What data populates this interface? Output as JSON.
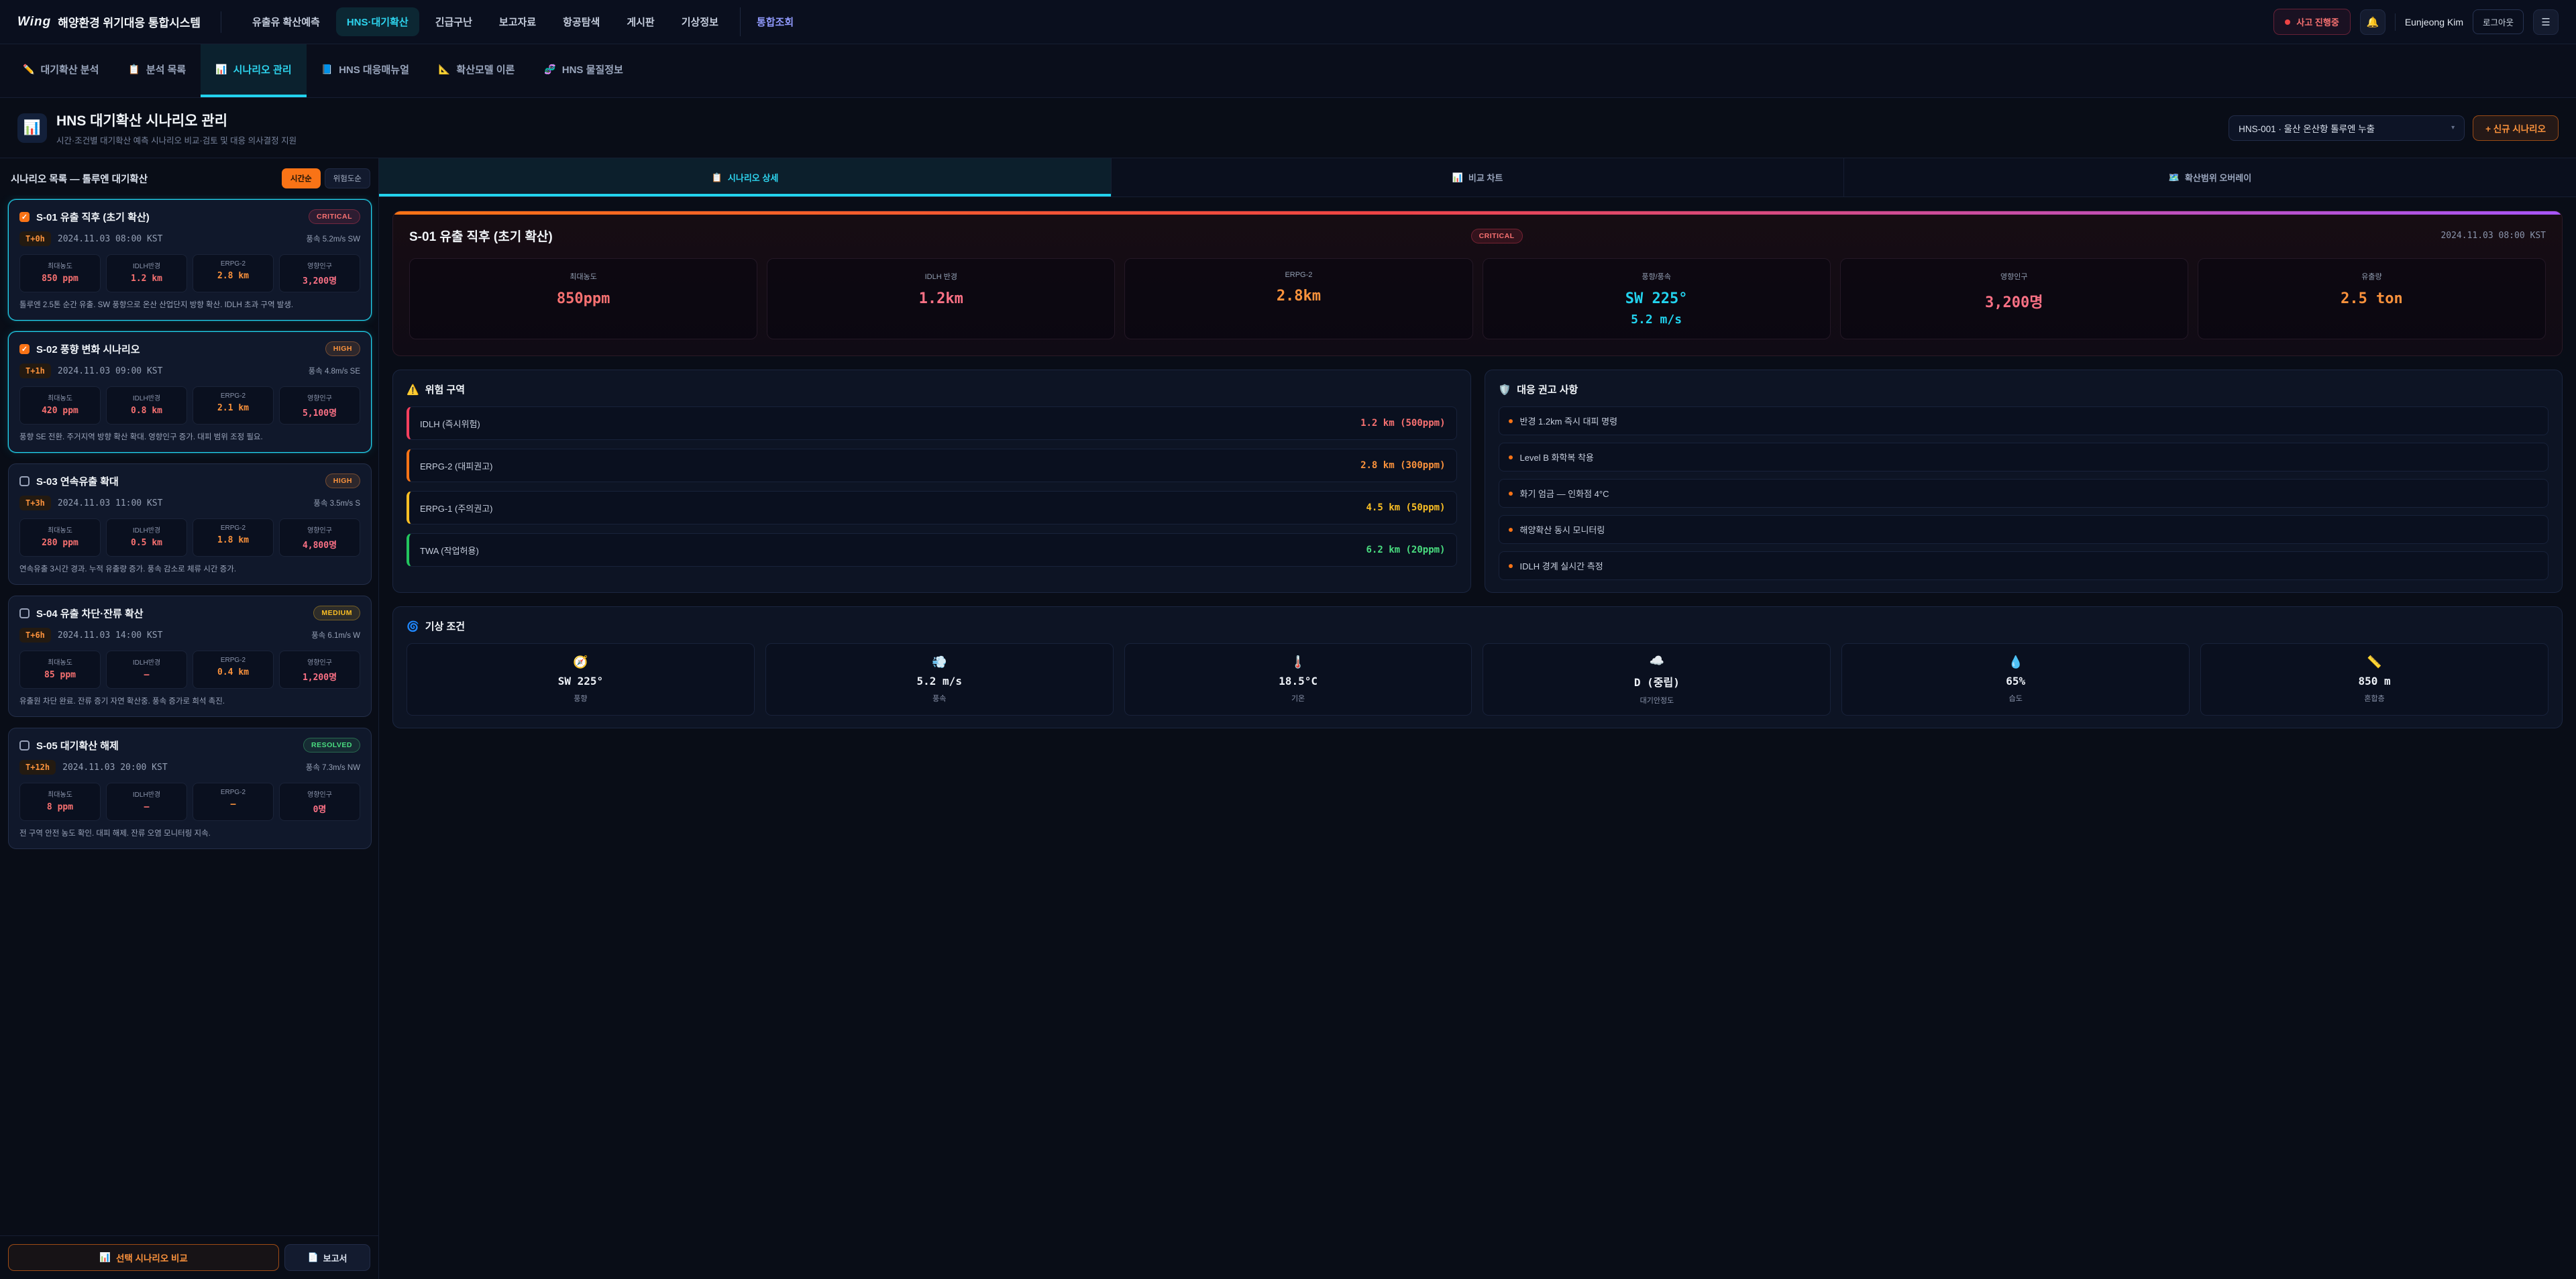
{
  "topnav": {
    "logo_mark": "Wing",
    "logo_text": "해양환경 위기대응 통합시스템",
    "items": [
      {
        "label": "유출유 확산예측",
        "state": "normal"
      },
      {
        "label": "HNS·대기확산",
        "state": "active"
      },
      {
        "label": "긴급구난",
        "state": "normal"
      },
      {
        "label": "보고자료",
        "state": "normal"
      },
      {
        "label": "항공탐색",
        "state": "normal"
      },
      {
        "label": "게시판",
        "state": "normal"
      },
      {
        "label": "기상정보",
        "state": "normal"
      },
      {
        "label": "통합조회",
        "state": "accent"
      }
    ],
    "incident_badge": "사고 진행중",
    "bell_icon": "🔔",
    "user_name": "Eunjeong Kim",
    "logout_label": "로그아웃",
    "menu_icon": "☰"
  },
  "subtabs": [
    {
      "icon": "✏️",
      "label": "대기확산 분석",
      "state": "normal"
    },
    {
      "icon": "📋",
      "label": "분석 목록",
      "state": "normal"
    },
    {
      "icon": "📊",
      "label": "시나리오 관리",
      "state": "active"
    },
    {
      "icon": "📘",
      "label": "HNS 대응매뉴얼",
      "state": "normal"
    },
    {
      "icon": "📐",
      "label": "확산모델 이론",
      "state": "normal"
    },
    {
      "icon": "🧬",
      "label": "HNS 물질정보",
      "state": "normal"
    }
  ],
  "header": {
    "icon": "📊",
    "title": "HNS 대기확산 시나리오 관리",
    "subtitle": "시간·조건별 대기확산 예측 시나리오 비교·검토 및 대응 의사결정 지원",
    "select_value": "HNS-001 · 울산 온산항 톨루엔 누출",
    "select_caret": "▾",
    "new_button": "+ 신규 시나리오"
  },
  "sidebar": {
    "title": "시나리오 목록 — 톨루엔 대기확산",
    "sort_time": "시간순",
    "sort_risk": "위험도순",
    "cards": [
      {
        "checked": "checked",
        "state": "selected",
        "title": "S-01 유출 직후 (초기 확산)",
        "severity": "CRITICAL",
        "sev_class": "critical",
        "time": "T+0h",
        "datetime": "2024.11.03 08:00 KST",
        "wind": "풍속 5.2m/s SW",
        "stats": [
          {
            "label": "최대농도",
            "value": "850 ppm",
            "color": "red"
          },
          {
            "label": "IDLH반경",
            "value": "1.2 km",
            "color": "red"
          },
          {
            "label": "ERPG-2",
            "value": "2.8 km",
            "color": "orange"
          },
          {
            "label": "영향인구",
            "value": "3,200명",
            "color": "pink"
          }
        ],
        "desc": "톨루엔 2.5톤 순간 유출. SW 풍향으로 온산 산업단지 방향 확산. IDLH 초과 구역 발생."
      },
      {
        "checked": "checked",
        "state": "selected",
        "title": "S-02 풍향 변화 시나리오",
        "severity": "HIGH",
        "sev_class": "high",
        "time": "T+1h",
        "datetime": "2024.11.03 09:00 KST",
        "wind": "풍속 4.8m/s SE",
        "stats": [
          {
            "label": "최대농도",
            "value": "420 ppm",
            "color": "red"
          },
          {
            "label": "IDLH반경",
            "value": "0.8 km",
            "color": "red"
          },
          {
            "label": "ERPG-2",
            "value": "2.1 km",
            "color": "orange"
          },
          {
            "label": "영향인구",
            "value": "5,100명",
            "color": "pink"
          }
        ],
        "desc": "풍향 SE 전환. 주거지역 방향 확산 확대. 영향인구 증가. 대피 범위 조정 필요."
      },
      {
        "checked": "unchecked",
        "state": "normal",
        "title": "S-03 연속유출 확대",
        "severity": "HIGH",
        "sev_class": "high",
        "time": "T+3h",
        "datetime": "2024.11.03 11:00 KST",
        "wind": "풍속 3.5m/s S",
        "stats": [
          {
            "label": "최대농도",
            "value": "280 ppm",
            "color": "red"
          },
          {
            "label": "IDLH반경",
            "value": "0.5 km",
            "color": "red"
          },
          {
            "label": "ERPG-2",
            "value": "1.8 km",
            "color": "orange"
          },
          {
            "label": "영향인구",
            "value": "4,800명",
            "color": "pink"
          }
        ],
        "desc": "연속유출 3시간 경과. 누적 유출량 증가. 풍속 감소로 체류 시간 증가."
      },
      {
        "checked": "unchecked",
        "state": "normal",
        "title": "S-04 유출 차단·잔류 확산",
        "severity": "MEDIUM",
        "sev_class": "medium",
        "time": "T+6h",
        "datetime": "2024.11.03 14:00 KST",
        "wind": "풍속 6.1m/s W",
        "stats": [
          {
            "label": "최대농도",
            "value": "85 ppm",
            "color": "red"
          },
          {
            "label": "IDLH반경",
            "value": "—",
            "color": "red"
          },
          {
            "label": "ERPG-2",
            "value": "0.4 km",
            "color": "orange"
          },
          {
            "label": "영향인구",
            "value": "1,200명",
            "color": "pink"
          }
        ],
        "desc": "유출원 차단 완료. 잔류 증기 자연 확산중. 풍속 증가로 희석 촉진."
      },
      {
        "checked": "unchecked",
        "state": "normal",
        "title": "S-05 대기확산 해제",
        "severity": "RESOLVED",
        "sev_class": "resolved",
        "time": "T+12h",
        "datetime": "2024.11.03 20:00 KST",
        "wind": "풍속 7.3m/s NW",
        "stats": [
          {
            "label": "최대농도",
            "value": "8 ppm",
            "color": "red"
          },
          {
            "label": "IDLH반경",
            "value": "—",
            "color": "red"
          },
          {
            "label": "ERPG-2",
            "value": "—",
            "color": "orange"
          },
          {
            "label": "영향인구",
            "value": "0명",
            "color": "pink"
          }
        ],
        "desc": "전 구역 안전 농도 확인. 대피 해제. 잔류 오염 모니터링 지속."
      }
    ],
    "compare_icon": "📊",
    "compare_button": "선택 시나리오 비교",
    "report_icon": "📄",
    "report_button": "보고서"
  },
  "main": {
    "tabs": [
      {
        "icon": "📋",
        "label": "시나리오 상세",
        "state": "active"
      },
      {
        "icon": "📊",
        "label": "비교 차트",
        "state": "normal"
      },
      {
        "icon": "🗺️",
        "label": "확산범위 오버레이",
        "state": "normal"
      }
    ],
    "detail": {
      "title": "S-01 유출 직후 (초기 확산)",
      "severity": "CRITICAL",
      "sev_class": "critical",
      "timestamp": "2024.11.03 08:00 KST",
      "stats": [
        {
          "label": "최대농도",
          "value": "850ppm",
          "color": "red"
        },
        {
          "label": "IDLH 반경",
          "value": "1.2km",
          "color": "pink"
        },
        {
          "label": "ERPG-2",
          "value": "2.8km",
          "color": "orange"
        },
        {
          "label": "풍향/풍속",
          "value": "SW 225°",
          "value2": "5.2 m/s",
          "color": "cyan"
        },
        {
          "label": "영향인구",
          "value": "3,200명",
          "color": "pink"
        },
        {
          "label": "유출량",
          "value": "2.5 ton",
          "color": "orange"
        }
      ]
    },
    "zones": {
      "icon": "⚠️",
      "title": "위험 구역",
      "items": [
        {
          "label": "IDLH (즉시위험)",
          "value": "1.2 km (500ppm)",
          "color": "red"
        },
        {
          "label": "ERPG-2 (대피권고)",
          "value": "2.8 km (300ppm)",
          "color": "orange"
        },
        {
          "label": "ERPG-1 (주의권고)",
          "value": "4.5 km (50ppm)",
          "color": "yellow"
        },
        {
          "label": "TWA (작업허용)",
          "value": "6.2 km (20ppm)",
          "color": "green"
        }
      ]
    },
    "recommendations": {
      "icon": "🛡️",
      "title": "대응 권고 사항",
      "items": [
        {
          "text": "반경 1.2km 즉시 대피 명령"
        },
        {
          "text": "Level B 화학복 착용"
        },
        {
          "text": "화기 엄금 — 인화점 4°C"
        },
        {
          "text": "해양확산 동시 모니터링"
        },
        {
          "text": "IDLH 경계 실시간 측정"
        }
      ]
    },
    "weather": {
      "icon": "🌀",
      "title": "기상 조건",
      "items": [
        {
          "icon": "🧭",
          "value": "SW 225°",
          "label": "풍향"
        },
        {
          "icon": "💨",
          "value": "5.2 m/s",
          "label": "풍속"
        },
        {
          "icon": "🌡️",
          "value": "18.5°C",
          "label": "기온"
        },
        {
          "icon": "☁️",
          "value": "D (중립)",
          "label": "대기안정도"
        },
        {
          "icon": "💧",
          "value": "65%",
          "label": "습도"
        },
        {
          "icon": "📏",
          "value": "850 m",
          "label": "혼합층"
        }
      ]
    }
  }
}
